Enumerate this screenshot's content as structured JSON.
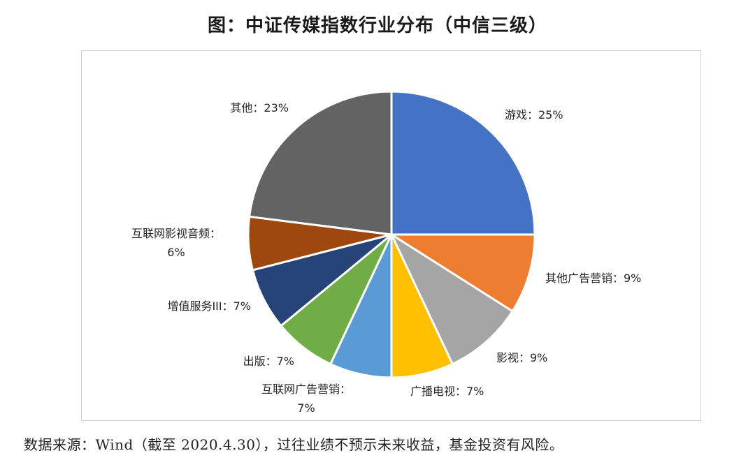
{
  "title": "图：中证传媒指数行业分布（中信三级）",
  "footnote": "数据来源：Wind（截至 2020.4.30），过往业绩不预示未来收益，基金投资有风险。",
  "chart_data": {
    "type": "pie",
    "title": "图：中证传媒指数行业分布（中信三级）",
    "slices": [
      {
        "name": "游戏",
        "value": 25,
        "label": [
          "游戏：25%"
        ],
        "color": "#4472C4"
      },
      {
        "name": "其他广告营销",
        "value": 9,
        "label": [
          "其他广告营销：9%"
        ],
        "color": "#ED7D31"
      },
      {
        "name": "影视",
        "value": 9,
        "label": [
          "影视：9%"
        ],
        "color": "#A5A5A5"
      },
      {
        "name": "广播电视",
        "value": 7,
        "label": [
          "广播电视：7%"
        ],
        "color": "#FFC000"
      },
      {
        "name": "互联网广告营销",
        "value": 7,
        "label": [
          "互联网广告营销：",
          "7%"
        ],
        "color": "#5B9BD5"
      },
      {
        "name": "出版",
        "value": 7,
        "label": [
          "出版：7%"
        ],
        "color": "#70AD47"
      },
      {
        "name": "增值服务III",
        "value": 7,
        "label": [
          "增值服务III：7%"
        ],
        "color": "#264478"
      },
      {
        "name": "互联网影视音频",
        "value": 6,
        "label": [
          "互联网影视音频：",
          "6%"
        ],
        "color": "#9E480E"
      },
      {
        "name": "其他",
        "value": 23,
        "label": [
          "其他：23%"
        ],
        "color": "#636363"
      }
    ]
  }
}
